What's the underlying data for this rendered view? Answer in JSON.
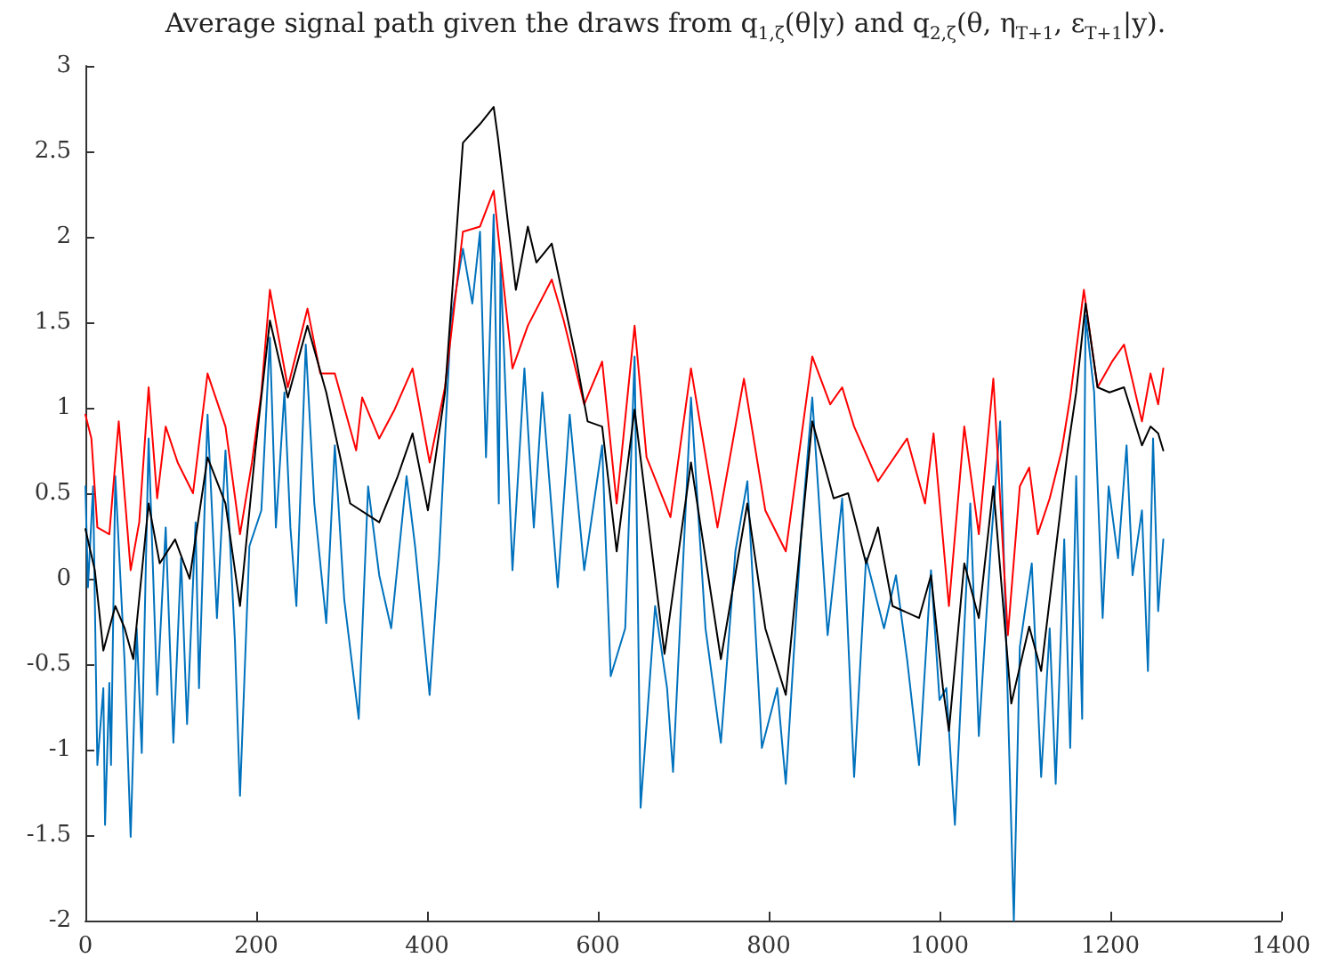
{
  "chart_data": {
    "type": "line",
    "title": "Average signal path given the draws from q$_{1,ζ}$(θ|y) and q$_{2,ζ}$(θ, η$_{T+1}$, ε$_{T+1}$|y).",
    "xlim": [
      0,
      1400
    ],
    "xticks": [
      0,
      200,
      400,
      600,
      800,
      1000,
      1200,
      1400
    ],
    "ylim": [
      -2,
      3
    ],
    "yticks": [
      -2,
      -1.5,
      -1,
      -0.5,
      0,
      0.5,
      1,
      1.5,
      2,
      2.5,
      3
    ],
    "marker": "none",
    "line_style": "solid",
    "series": [
      {
        "color": "#0072bd",
        "x": [
          0,
          3,
          9,
          14,
          21,
          23,
          28,
          30,
          35,
          46,
          53,
          60,
          66,
          74,
          84,
          94,
          103,
          112,
          119,
          129,
          133,
          143,
          154,
          164,
          175,
          181,
          192,
          206,
          216,
          223,
          233,
          240,
          247,
          258,
          268,
          282,
          292,
          303,
          320,
          331,
          344,
          358,
          376,
          386,
          403,
          414,
          428,
          442,
          453,
          462,
          469,
          478,
          484,
          486,
          500,
          514,
          525,
          535,
          553,
          567,
          584,
          605,
          615,
          632,
          643,
          650,
          667,
          681,
          688,
          709,
          726,
          744,
          761,
          775,
          792,
          810,
          820,
          838,
          851,
          869,
          886,
          900,
          914,
          935,
          949,
          962,
          976,
          990,
          1000,
          1008,
          1018,
          1029,
          1036,
          1046,
          1060,
          1071,
          1087,
          1094,
          1108,
          1119,
          1129,
          1136,
          1146,
          1153,
          1160,
          1167,
          1171,
          1181,
          1191,
          1198,
          1209,
          1219,
          1226,
          1237,
          1244,
          1250,
          1256,
          1262
        ],
        "values": [
          0.54,
          -0.05,
          0.54,
          -1.09,
          -0.64,
          -1.44,
          -0.61,
          -1.09,
          0.6,
          -0.5,
          -1.51,
          -0.29,
          -1.02,
          0.82,
          -0.68,
          0.3,
          -0.96,
          0.12,
          -0.85,
          0.33,
          -0.64,
          0.96,
          -0.23,
          0.75,
          -0.36,
          -1.27,
          0.19,
          0.4,
          1.41,
          0.3,
          1.09,
          0.3,
          -0.16,
          1.37,
          0.44,
          -0.26,
          0.78,
          -0.12,
          -0.82,
          0.54,
          0.02,
          -0.29,
          0.6,
          0.19,
          -0.68,
          0.12,
          1.51,
          1.93,
          1.61,
          2.03,
          0.71,
          2.13,
          0.44,
          1.85,
          0.05,
          1.23,
          0.3,
          1.09,
          -0.05,
          0.96,
          0.05,
          0.78,
          -0.57,
          -0.29,
          1.3,
          -1.34,
          -0.16,
          -0.64,
          -1.13,
          1.06,
          -0.29,
          -0.96,
          0.16,
          0.57,
          -0.99,
          -0.64,
          -1.2,
          0.26,
          1.06,
          -0.33,
          0.47,
          -1.16,
          0.12,
          -0.29,
          0.02,
          -0.47,
          -1.09,
          0.05,
          -0.71,
          -0.64,
          -1.44,
          -0.29,
          0.44,
          -0.92,
          0.19,
          0.92,
          -2.0,
          -0.4,
          0.09,
          -1.16,
          -0.29,
          -1.2,
          0.23,
          -0.99,
          0.6,
          -0.82,
          1.54,
          1.09,
          -0.23,
          0.54,
          0.12,
          0.78,
          0.02,
          0.4,
          -0.54,
          0.82,
          -0.19,
          0.23
        ]
      },
      {
        "color": "#ff0000",
        "x": [
          0,
          7,
          14,
          28,
          39,
          53,
          63,
          74,
          84,
          94,
          108,
          126,
          143,
          164,
          181,
          195,
          206,
          216,
          237,
          260,
          275,
          292,
          317,
          324,
          344,
          362,
          383,
          403,
          421,
          442,
          462,
          478,
          483,
          500,
          518,
          546,
          560,
          584,
          605,
          622,
          643,
          657,
          685,
          709,
          740,
          771,
          796,
          820,
          851,
          872,
          886,
          900,
          928,
          962,
          983,
          993,
          1011,
          1029,
          1046,
          1063,
          1080,
          1094,
          1105,
          1115,
          1129,
          1143,
          1153,
          1169,
          1185,
          1202,
          1216,
          1237,
          1247,
          1256,
          1262
        ],
        "values": [
          0.96,
          0.82,
          0.3,
          0.26,
          0.92,
          0.05,
          0.33,
          1.12,
          0.47,
          0.89,
          0.68,
          0.5,
          1.2,
          0.89,
          0.26,
          0.68,
          1.09,
          1.69,
          1.12,
          1.58,
          1.2,
          1.2,
          0.75,
          1.06,
          0.82,
          0.99,
          1.23,
          0.68,
          1.12,
          2.03,
          2.06,
          2.27,
          2.03,
          1.23,
          1.48,
          1.75,
          1.51,
          1.02,
          1.27,
          0.44,
          1.48,
          0.71,
          0.36,
          1.23,
          0.3,
          1.17,
          0.4,
          0.16,
          1.3,
          1.02,
          1.12,
          0.89,
          0.57,
          0.82,
          0.44,
          0.85,
          -0.16,
          0.89,
          0.26,
          1.17,
          -0.33,
          0.54,
          0.65,
          0.26,
          0.47,
          0.75,
          1.06,
          1.69,
          1.12,
          1.27,
          1.37,
          0.92,
          1.2,
          1.02,
          1.23
        ]
      },
      {
        "color": "#000000",
        "x": [
          0,
          11,
          21,
          35,
          46,
          56,
          74,
          87,
          105,
          122,
          143,
          164,
          181,
          199,
          216,
          237,
          260,
          282,
          310,
          344,
          365,
          383,
          401,
          421,
          442,
          462,
          478,
          483,
          504,
          518,
          528,
          546,
          574,
          588,
          605,
          622,
          643,
          678,
          709,
          744,
          775,
          796,
          820,
          851,
          876,
          893,
          914,
          928,
          945,
          976,
          990,
          1004,
          1011,
          1029,
          1046,
          1063,
          1084,
          1105,
          1119,
          1150,
          1160,
          1171,
          1185,
          1199,
          1216,
          1237,
          1247,
          1256,
          1262
        ],
        "values": [
          0.29,
          0.05,
          -0.42,
          -0.16,
          -0.29,
          -0.47,
          0.44,
          0.09,
          0.23,
          0.0,
          0.71,
          0.44,
          -0.16,
          0.75,
          1.51,
          1.06,
          1.48,
          1.09,
          0.44,
          0.33,
          0.59,
          0.85,
          0.4,
          1.09,
          2.55,
          2.66,
          2.76,
          2.58,
          1.69,
          2.06,
          1.85,
          1.96,
          1.3,
          0.92,
          0.89,
          0.16,
          0.99,
          -0.44,
          0.68,
          -0.47,
          0.44,
          -0.29,
          -0.68,
          0.92,
          0.47,
          0.5,
          0.09,
          0.3,
          -0.16,
          -0.23,
          0.02,
          -0.64,
          -0.89,
          0.09,
          -0.23,
          0.54,
          -0.73,
          -0.28,
          -0.54,
          0.75,
          1.09,
          1.61,
          1.12,
          1.09,
          1.12,
          0.78,
          0.89,
          0.85,
          0.75
        ]
      }
    ]
  }
}
